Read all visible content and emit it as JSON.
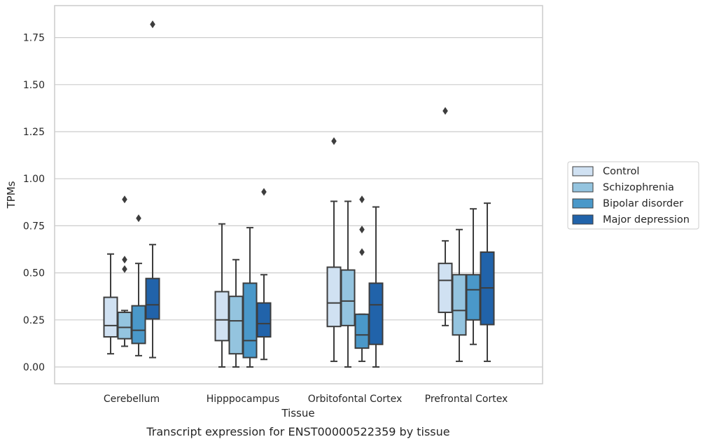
{
  "chart_data": {
    "type": "box",
    "xlabel": "Tissue",
    "ylabel": "TPMs",
    "caption": "Transcript expression for ENST00000522359 by tissue",
    "ylim": [
      -0.09,
      1.91
    ],
    "yticks": [
      0.0,
      0.25,
      0.5,
      0.75,
      1.0,
      1.25,
      1.5,
      1.75
    ],
    "ytick_labels": [
      "0.00",
      "0.25",
      "0.50",
      "0.75",
      "1.00",
      "1.25",
      "1.50",
      "1.75"
    ],
    "grid": "horizontal",
    "legend_placement": "right",
    "categories": [
      "Cerebellum",
      "Hipppocampus",
      "Orbitofontal Cortex",
      "Prefrontal Cortex"
    ],
    "series": [
      {
        "name": "Control",
        "color": "#d0e1f2",
        "boxes": [
          {
            "whislo": 0.07,
            "q1": 0.16,
            "med": 0.22,
            "q3": 0.37,
            "whishi": 0.6,
            "fliers": []
          },
          {
            "whislo": 0.0,
            "q1": 0.14,
            "med": 0.25,
            "q3": 0.4,
            "whishi": 0.76,
            "fliers": []
          },
          {
            "whislo": 0.03,
            "q1": 0.215,
            "med": 0.34,
            "q3": 0.53,
            "whishi": 0.88,
            "fliers": [
              1.2
            ]
          },
          {
            "whislo": 0.22,
            "q1": 0.29,
            "med": 0.46,
            "q3": 0.55,
            "whishi": 0.67,
            "fliers": [
              1.36
            ]
          }
        ]
      },
      {
        "name": "Schizophrenia",
        "color": "#94c4df",
        "boxes": [
          {
            "whislo": 0.11,
            "q1": 0.15,
            "med": 0.21,
            "q3": 0.29,
            "whishi": 0.3,
            "fliers": [
              0.52,
              0.57,
              0.89
            ]
          },
          {
            "whislo": 0.0,
            "q1": 0.07,
            "med": 0.245,
            "q3": 0.375,
            "whishi": 0.57,
            "fliers": []
          },
          {
            "whislo": 0.0,
            "q1": 0.22,
            "med": 0.35,
            "q3": 0.515,
            "whishi": 0.88,
            "fliers": []
          },
          {
            "whislo": 0.03,
            "q1": 0.17,
            "med": 0.3,
            "q3": 0.49,
            "whishi": 0.73,
            "fliers": []
          }
        ]
      },
      {
        "name": "Bipolar disorder",
        "color": "#4a98c9",
        "boxes": [
          {
            "whislo": 0.06,
            "q1": 0.125,
            "med": 0.195,
            "q3": 0.325,
            "whishi": 0.55,
            "fliers": [
              0.79
            ]
          },
          {
            "whislo": 0.0,
            "q1": 0.05,
            "med": 0.14,
            "q3": 0.445,
            "whishi": 0.74,
            "fliers": []
          },
          {
            "whislo": 0.03,
            "q1": 0.1,
            "med": 0.17,
            "q3": 0.28,
            "whishi": 0.28,
            "fliers": [
              0.61,
              0.73,
              0.89
            ]
          },
          {
            "whislo": 0.12,
            "q1": 0.25,
            "med": 0.41,
            "q3": 0.49,
            "whishi": 0.84,
            "fliers": []
          }
        ]
      },
      {
        "name": "Major depression",
        "color": "#2163aa",
        "boxes": [
          {
            "whislo": 0.05,
            "q1": 0.255,
            "med": 0.33,
            "q3": 0.47,
            "whishi": 0.65,
            "fliers": [
              1.82
            ]
          },
          {
            "whislo": 0.04,
            "q1": 0.16,
            "med": 0.23,
            "q3": 0.34,
            "whishi": 0.49,
            "fliers": [
              0.93
            ]
          },
          {
            "whislo": 0.0,
            "q1": 0.12,
            "med": 0.33,
            "q3": 0.445,
            "whishi": 0.85,
            "fliers": []
          },
          {
            "whislo": 0.03,
            "q1": 0.225,
            "med": 0.42,
            "q3": 0.61,
            "whishi": 0.87,
            "fliers": []
          }
        ]
      }
    ]
  }
}
